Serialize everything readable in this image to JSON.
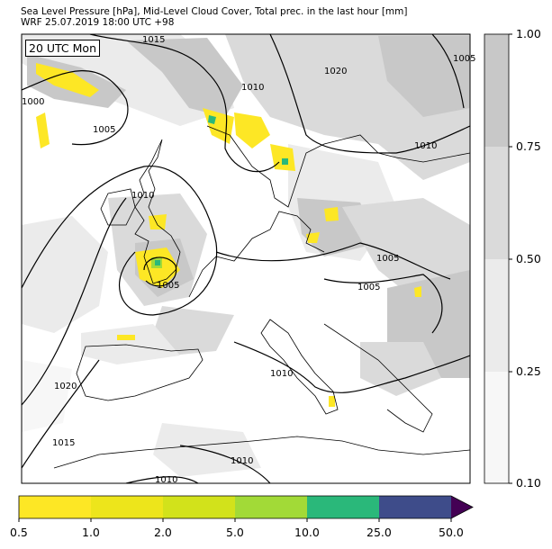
{
  "header": {
    "title_line1": "Sea Level Pressure [hPa], Mid-Level Cloud Cover, Total prec. in the last hour [mm]",
    "title_line2": "WRF 25.07.2019 18:00 UTC +98"
  },
  "map": {
    "time_label": "20 UTC Mon",
    "isobar_labels": [
      {
        "text": "1015"
      },
      {
        "text": "1010"
      },
      {
        "text": "1020"
      },
      {
        "text": "1005"
      },
      {
        "text": "1000"
      },
      {
        "text": "1005"
      },
      {
        "text": "1010"
      },
      {
        "text": "1010"
      },
      {
        "text": "1005"
      },
      {
        "text": "1005"
      },
      {
        "text": "1005"
      },
      {
        "text": "1010"
      },
      {
        "text": "1020"
      },
      {
        "text": "1015"
      },
      {
        "text": "1010"
      },
      {
        "text": "1010"
      }
    ]
  },
  "cloud_colorbar": {
    "tick_labels": [
      "1.00",
      "0.75",
      "0.50",
      "0.25",
      "0.10"
    ],
    "colors": [
      "#c8c8c8",
      "#dadada",
      "#ebebeb",
      "#f7f7f7"
    ]
  },
  "precip_colorbar": {
    "tick_labels": [
      "0.5",
      "1.0",
      "2.0",
      "5.0",
      "10.0",
      "25.0",
      "50.0"
    ],
    "colors": [
      "#fde725",
      "#ede51b",
      "#d2e21b",
      "#a2da37",
      "#2ab87a",
      "#3e4c8a",
      "#440154"
    ]
  }
}
